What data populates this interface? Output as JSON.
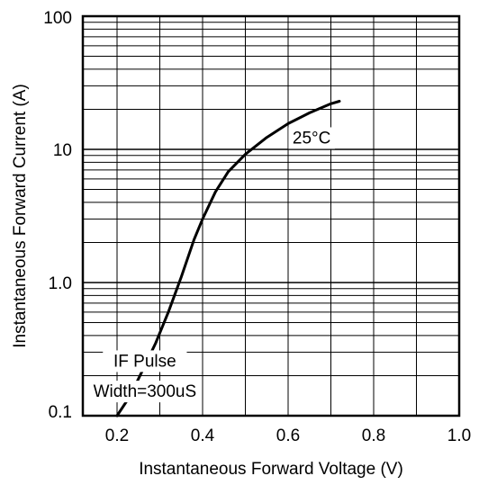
{
  "chart_data": {
    "type": "line",
    "xlabel": "Instantaneous Forward Voltage (V)",
    "ylabel": "Instantaneous Forward Current (A)",
    "xlim": [
      0.12,
      1.0
    ],
    "ylim": [
      0.1,
      100
    ],
    "y_scale": "log",
    "grid": true,
    "x_ticks": [
      {
        "value": 0.2,
        "label": "0.2"
      },
      {
        "value": 0.4,
        "label": "0.4"
      },
      {
        "value": 0.6,
        "label": "0.6"
      },
      {
        "value": 0.8,
        "label": "0.8"
      },
      {
        "value": 1.0,
        "label": "1.0"
      }
    ],
    "y_ticks": [
      {
        "value": 0.1,
        "label": "0.1"
      },
      {
        "value": 1,
        "label": "1.0"
      },
      {
        "value": 10,
        "label": "10"
      },
      {
        "value": 100,
        "label": "100"
      }
    ],
    "series": [
      {
        "x": [
          0.2,
          0.23,
          0.26,
          0.29,
          0.32,
          0.35,
          0.38,
          0.4,
          0.43,
          0.46,
          0.5,
          0.55,
          0.6,
          0.65,
          0.7,
          0.72
        ],
        "y": [
          0.1,
          0.14,
          0.22,
          0.35,
          0.6,
          1.1,
          2.1,
          3.0,
          4.8,
          6.8,
          9.2,
          12.3,
          15.6,
          18.8,
          22.0,
          23.0
        ]
      }
    ],
    "annotations": [
      {
        "text": "25°C",
        "x": 0.655,
        "y": 11.6
      },
      {
        "text": "IF Pulse",
        "x": 0.265,
        "y": 0.245
      },
      {
        "text": "Width=300uS",
        "x": 0.265,
        "y": 0.145
      }
    ]
  }
}
